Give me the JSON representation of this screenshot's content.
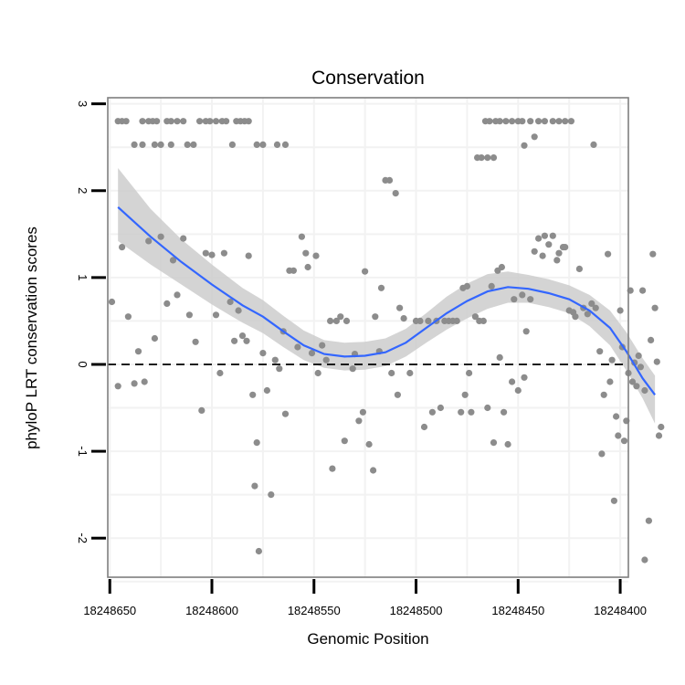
{
  "chart_data": {
    "type": "scatter",
    "title": "Conservation",
    "xlabel": "Genomic Position",
    "ylabel": "phyloP LRT conservation scores",
    "x_reversed": true,
    "xlim": [
      18248396,
      18248651
    ],
    "ylim": [
      -2.45,
      3.07
    ],
    "x_ticks": [
      18248650,
      18248600,
      18248550,
      18248500,
      18248450,
      18248400
    ],
    "x_tick_labels": [
      "18248650",
      "18248600",
      "18248550",
      "18248500",
      "18248450",
      "18248400"
    ],
    "y_ticks": [
      -2,
      -1,
      0,
      1,
      2,
      3
    ],
    "y_tick_labels": [
      "-2",
      "-1",
      "0",
      "1",
      "2",
      "3"
    ],
    "reference_line": {
      "y": 0,
      "style": "dashed"
    },
    "colors": {
      "points": "#8c8c8c",
      "smooth": "#3366ff",
      "ribbon": "#cccccc",
      "panel_border": "#7f7f7f",
      "grid": "#f2f2f2"
    },
    "series": [
      {
        "name": "observations",
        "points": [
          [
            18248646,
            2.8
          ],
          [
            18248644,
            2.8
          ],
          [
            18248642,
            2.8
          ],
          [
            18248638,
            2.53
          ],
          [
            18248634,
            2.8
          ],
          [
            18248631,
            2.8
          ],
          [
            18248629,
            2.8
          ],
          [
            18248627,
            2.8
          ],
          [
            18248625,
            2.53
          ],
          [
            18248622,
            2.8
          ],
          [
            18248620,
            2.8
          ],
          [
            18248617,
            2.8
          ],
          [
            18248614,
            2.8
          ],
          [
            18248612,
            2.53
          ],
          [
            18248609,
            2.53
          ],
          [
            18248606,
            2.8
          ],
          [
            18248603,
            2.8
          ],
          [
            18248601,
            2.8
          ],
          [
            18248598,
            2.8
          ],
          [
            18248595,
            2.8
          ],
          [
            18248593,
            2.8
          ],
          [
            18248590,
            2.53
          ],
          [
            18248588,
            2.8
          ],
          [
            18248586,
            2.8
          ],
          [
            18248584,
            2.8
          ],
          [
            18248582,
            2.8
          ],
          [
            18248578,
            2.53
          ],
          [
            18248575,
            2.53
          ],
          [
            18248568,
            2.53
          ],
          [
            18248564,
            2.53
          ],
          [
            18248620,
            2.53
          ],
          [
            18248634,
            2.53
          ],
          [
            18248628,
            2.53
          ],
          [
            18248649,
            0.72
          ],
          [
            18248646,
            -0.25
          ],
          [
            18248644,
            1.35
          ],
          [
            18248641,
            0.55
          ],
          [
            18248638,
            -0.22
          ],
          [
            18248636,
            0.15
          ],
          [
            18248633,
            -0.2
          ],
          [
            18248631,
            1.42
          ],
          [
            18248628,
            0.3
          ],
          [
            18248625,
            1.47
          ],
          [
            18248622,
            0.7
          ],
          [
            18248619,
            1.2
          ],
          [
            18248617,
            0.8
          ],
          [
            18248614,
            1.45
          ],
          [
            18248611,
            0.57
          ],
          [
            18248608,
            0.26
          ],
          [
            18248605,
            -0.53
          ],
          [
            18248603,
            1.28
          ],
          [
            18248600,
            1.26
          ],
          [
            18248598,
            0.57
          ],
          [
            18248596,
            -0.1
          ],
          [
            18248594,
            1.28
          ],
          [
            18248591,
            0.72
          ],
          [
            18248589,
            0.27
          ],
          [
            18248587,
            0.62
          ],
          [
            18248585,
            0.33
          ],
          [
            18248583,
            0.27
          ],
          [
            18248582,
            1.25
          ],
          [
            18248580,
            -0.35
          ],
          [
            18248579,
            -1.4
          ],
          [
            18248578,
            -0.9
          ],
          [
            18248577,
            -2.15
          ],
          [
            18248575,
            0.13
          ],
          [
            18248573,
            -0.3
          ],
          [
            18248571,
            -1.5
          ],
          [
            18248569,
            0.05
          ],
          [
            18248567,
            -0.05
          ],
          [
            18248565,
            0.38
          ],
          [
            18248564,
            -0.57
          ],
          [
            18248562,
            1.08
          ],
          [
            18248560,
            1.08
          ],
          [
            18248558,
            0.2
          ],
          [
            18248556,
            1.47
          ],
          [
            18248554,
            1.28
          ],
          [
            18248553,
            1.12
          ],
          [
            18248551,
            0.13
          ],
          [
            18248549,
            1.25
          ],
          [
            18248548,
            -0.1
          ],
          [
            18248546,
            0.22
          ],
          [
            18248544,
            0.05
          ],
          [
            18248542,
            0.5
          ],
          [
            18248541,
            -1.2
          ],
          [
            18248539,
            0.5
          ],
          [
            18248537,
            0.55
          ],
          [
            18248535,
            -0.88
          ],
          [
            18248534,
            0.5
          ],
          [
            18248531,
            -0.05
          ],
          [
            18248530,
            0.12
          ],
          [
            18248528,
            -0.65
          ],
          [
            18248526,
            -0.55
          ],
          [
            18248525,
            1.07
          ],
          [
            18248523,
            -0.92
          ],
          [
            18248521,
            -1.22
          ],
          [
            18248520,
            0.55
          ],
          [
            18248518,
            0.15
          ],
          [
            18248517,
            0.88
          ],
          [
            18248515,
            2.12
          ],
          [
            18248513,
            2.12
          ],
          [
            18248512,
            -0.1
          ],
          [
            18248510,
            1.97
          ],
          [
            18248509,
            -0.35
          ],
          [
            18248508,
            0.65
          ],
          [
            18248506,
            0.53
          ],
          [
            18248503,
            -0.1
          ],
          [
            18248500,
            0.5
          ],
          [
            18248498,
            0.5
          ],
          [
            18248496,
            -0.72
          ],
          [
            18248494,
            0.5
          ],
          [
            18248492,
            -0.55
          ],
          [
            18248490,
            0.5
          ],
          [
            18248488,
            -0.5
          ],
          [
            18248486,
            0.5
          ],
          [
            18248484,
            0.5
          ],
          [
            18248482,
            0.5
          ],
          [
            18248480,
            0.5
          ],
          [
            18248478,
            -0.55
          ],
          [
            18248477,
            0.88
          ],
          [
            18248476,
            -0.35
          ],
          [
            18248475,
            0.9
          ],
          [
            18248474,
            -0.1
          ],
          [
            18248473,
            -0.55
          ],
          [
            18248471,
            0.55
          ],
          [
            18248469,
            0.5
          ],
          [
            18248467,
            0.5
          ],
          [
            18248465,
            -0.5
          ],
          [
            18248463,
            0.9
          ],
          [
            18248462,
            -0.9
          ],
          [
            18248460,
            1.08
          ],
          [
            18248459,
            0.08
          ],
          [
            18248458,
            1.12
          ],
          [
            18248457,
            -0.55
          ],
          [
            18248455,
            -0.92
          ],
          [
            18248453,
            -0.2
          ],
          [
            18248452,
            0.75
          ],
          [
            18248450,
            -0.3
          ],
          [
            18248448,
            0.8
          ],
          [
            18248447,
            -0.15
          ],
          [
            18248446,
            0.38
          ],
          [
            18248444,
            0.75
          ],
          [
            18248442,
            1.3
          ],
          [
            18248440,
            1.45
          ],
          [
            18248438,
            1.25
          ],
          [
            18248437,
            1.48
          ],
          [
            18248435,
            1.38
          ],
          [
            18248433,
            1.48
          ],
          [
            18248431,
            1.2
          ],
          [
            18248430,
            1.28
          ],
          [
            18248428,
            1.35
          ],
          [
            18248427,
            1.35
          ],
          [
            18248425,
            0.62
          ],
          [
            18248423,
            0.6
          ],
          [
            18248422,
            0.55
          ],
          [
            18248420,
            1.1
          ],
          [
            18248418,
            0.65
          ],
          [
            18248416,
            0.58
          ],
          [
            18248414,
            0.7
          ],
          [
            18248412,
            0.65
          ],
          [
            18248410,
            0.15
          ],
          [
            18248409,
            -1.03
          ],
          [
            18248408,
            -0.35
          ],
          [
            18248406,
            1.27
          ],
          [
            18248405,
            -0.2
          ],
          [
            18248404,
            0.05
          ],
          [
            18248403,
            -1.57
          ],
          [
            18248402,
            -0.6
          ],
          [
            18248401,
            -0.82
          ],
          [
            18248400,
            0.62
          ],
          [
            18248399,
            0.2
          ],
          [
            18248398,
            -0.88
          ],
          [
            18248397,
            -0.65
          ],
          [
            18248396,
            -0.1
          ],
          [
            18248395,
            0.85
          ],
          [
            18248394,
            -0.2
          ],
          [
            18248393,
            0.02
          ],
          [
            18248392,
            -0.25
          ],
          [
            18248391,
            0.1
          ],
          [
            18248390,
            -0.03
          ],
          [
            18248389,
            0.85
          ],
          [
            18248388,
            -0.3
          ],
          [
            18248388,
            -2.25
          ],
          [
            18248386,
            -1.8
          ],
          [
            18248385,
            0.28
          ],
          [
            18248384,
            1.27
          ],
          [
            18248383,
            0.65
          ],
          [
            18248382,
            0.03
          ],
          [
            18248381,
            -0.82
          ],
          [
            18248380,
            -0.72
          ],
          [
            18248470,
            2.38
          ],
          [
            18248468,
            2.38
          ],
          [
            18248465,
            2.38
          ],
          [
            18248462,
            2.38
          ],
          [
            18248466,
            2.8
          ],
          [
            18248464,
            2.8
          ],
          [
            18248461,
            2.8
          ],
          [
            18248459,
            2.8
          ],
          [
            18248456,
            2.8
          ],
          [
            18248453,
            2.8
          ],
          [
            18248450,
            2.8
          ],
          [
            18248448,
            2.8
          ],
          [
            18248444,
            2.8
          ],
          [
            18248440,
            2.8
          ],
          [
            18248437,
            2.8
          ],
          [
            18248433,
            2.8
          ],
          [
            18248430,
            2.8
          ],
          [
            18248427,
            2.8
          ],
          [
            18248424,
            2.8
          ],
          [
            18248442,
            2.62
          ],
          [
            18248447,
            2.52
          ],
          [
            18248413,
            2.53
          ]
        ]
      },
      {
        "name": "loess fit",
        "points": [
          [
            18248646,
            1.81
          ],
          [
            18248630,
            1.47
          ],
          [
            18248615,
            1.18
          ],
          [
            18248600,
            0.92
          ],
          [
            18248585,
            0.68
          ],
          [
            18248575,
            0.55
          ],
          [
            18248565,
            0.38
          ],
          [
            18248555,
            0.22
          ],
          [
            18248545,
            0.12
          ],
          [
            18248535,
            0.09
          ],
          [
            18248525,
            0.1
          ],
          [
            18248515,
            0.14
          ],
          [
            18248505,
            0.25
          ],
          [
            18248495,
            0.42
          ],
          [
            18248485,
            0.59
          ],
          [
            18248475,
            0.73
          ],
          [
            18248465,
            0.84
          ],
          [
            18248455,
            0.89
          ],
          [
            18248445,
            0.87
          ],
          [
            18248435,
            0.82
          ],
          [
            18248425,
            0.75
          ],
          [
            18248415,
            0.62
          ],
          [
            18248405,
            0.42
          ],
          [
            18248397,
            0.15
          ],
          [
            18248389,
            -0.16
          ],
          [
            18248383,
            -0.35
          ]
        ]
      },
      {
        "name": "confidence band",
        "upper": [
          2.26,
          1.79,
          1.44,
          1.15,
          0.88,
          0.74,
          0.56,
          0.39,
          0.28,
          0.25,
          0.26,
          0.3,
          0.41,
          0.59,
          0.78,
          0.93,
          1.04,
          1.07,
          1.03,
          0.98,
          0.91,
          0.8,
          0.62,
          0.37,
          0.07,
          -0.13
        ],
        "lower": [
          1.42,
          1.15,
          0.92,
          0.69,
          0.48,
          0.36,
          0.2,
          0.05,
          -0.04,
          -0.07,
          -0.06,
          -0.02,
          0.09,
          0.25,
          0.4,
          0.53,
          0.64,
          0.71,
          0.71,
          0.66,
          0.59,
          0.44,
          0.22,
          -0.07,
          -0.39,
          -0.68
        ]
      }
    ]
  }
}
